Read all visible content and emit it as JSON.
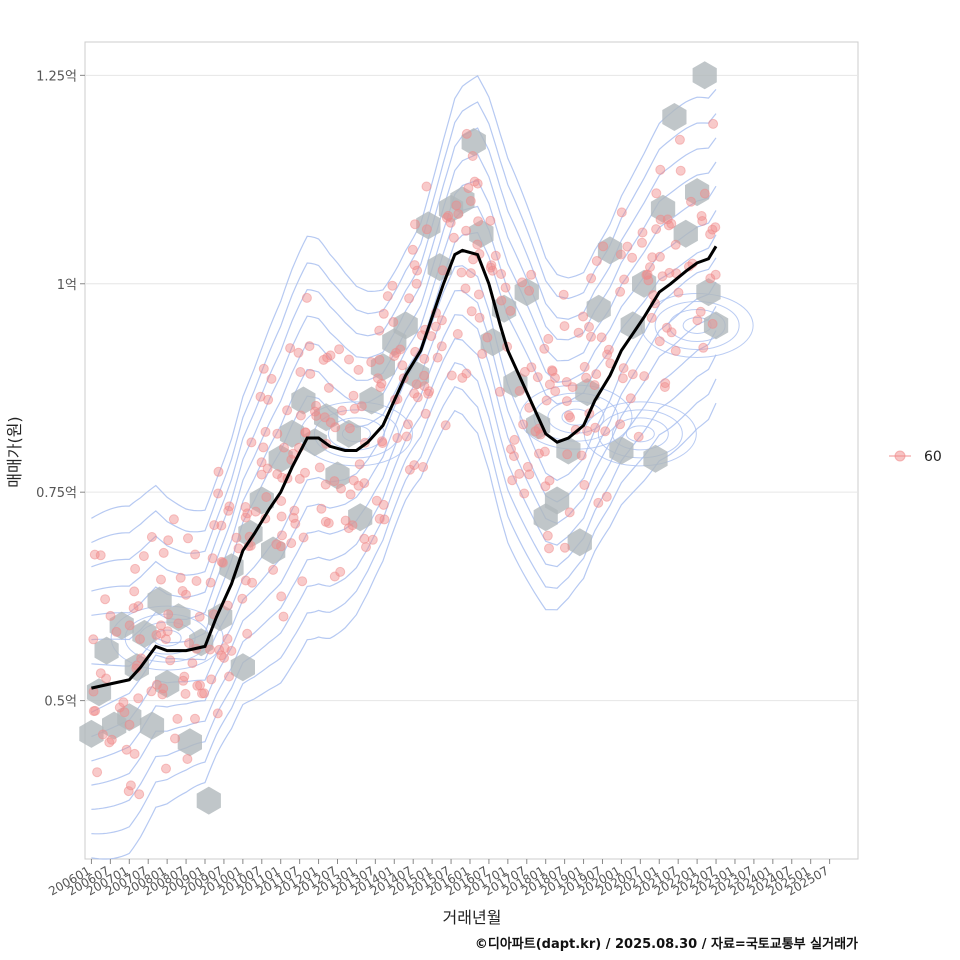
{
  "chart_data": {
    "type": "scatter",
    "xlabel": "거래년월",
    "ylabel": "매매가(원)",
    "caption": "©디아파트(dapt.kr) / 2025.08.30 / 자료=국토교통부 실거래가",
    "legend": {
      "position": "right",
      "entries": [
        {
          "name": "60",
          "color": "#f08a8a"
        }
      ]
    },
    "grid": true,
    "xlim": [
      2005.83,
      2026.25
    ],
    "ylim": [
      0.31,
      1.29
    ],
    "y_ticks": [
      {
        "value": 0.5,
        "label": "0.5억"
      },
      {
        "value": 0.75,
        "label": "0.75억"
      },
      {
        "value": 1.0,
        "label": "1억"
      },
      {
        "value": 1.25,
        "label": "1.25억"
      }
    ],
    "x_ticks": [
      "200601",
      "200607",
      "200701",
      "200707",
      "200801",
      "200807",
      "200901",
      "200907",
      "201001",
      "201007",
      "201101",
      "201107",
      "201201",
      "201207",
      "201301",
      "201307",
      "201401",
      "201407",
      "201501",
      "201507",
      "201601",
      "201607",
      "201701",
      "201707",
      "201801",
      "201807",
      "201901",
      "201907",
      "202001",
      "202007",
      "202101",
      "202107",
      "202201",
      "202207",
      "202301",
      "202307",
      "202401",
      "202407",
      "202501",
      "202507"
    ],
    "trend_line": {
      "color": "#000000",
      "points": [
        [
          2006.0,
          0.515
        ],
        [
          2006.5,
          0.52
        ],
        [
          2007.0,
          0.525
        ],
        [
          2007.3,
          0.54
        ],
        [
          2007.7,
          0.565
        ],
        [
          2008.0,
          0.56
        ],
        [
          2008.5,
          0.56
        ],
        [
          2009.0,
          0.565
        ],
        [
          2009.3,
          0.6
        ],
        [
          2009.7,
          0.64
        ],
        [
          2010.0,
          0.68
        ],
        [
          2010.3,
          0.7
        ],
        [
          2010.7,
          0.73
        ],
        [
          2011.0,
          0.75
        ],
        [
          2011.3,
          0.78
        ],
        [
          2011.7,
          0.815
        ],
        [
          2012.0,
          0.815
        ],
        [
          2012.3,
          0.805
        ],
        [
          2012.7,
          0.8
        ],
        [
          2013.0,
          0.8
        ],
        [
          2013.3,
          0.81
        ],
        [
          2013.7,
          0.83
        ],
        [
          2014.0,
          0.86
        ],
        [
          2014.3,
          0.89
        ],
        [
          2014.7,
          0.92
        ],
        [
          2015.0,
          0.96
        ],
        [
          2015.3,
          1.0
        ],
        [
          2015.6,
          1.035
        ],
        [
          2015.8,
          1.04
        ],
        [
          2016.2,
          1.035
        ],
        [
          2016.5,
          1.0
        ],
        [
          2016.8,
          0.95
        ],
        [
          2017.0,
          0.92
        ],
        [
          2017.3,
          0.89
        ],
        [
          2017.7,
          0.85
        ],
        [
          2018.0,
          0.82
        ],
        [
          2018.3,
          0.81
        ],
        [
          2018.6,
          0.815
        ],
        [
          2019.0,
          0.83
        ],
        [
          2019.3,
          0.86
        ],
        [
          2019.7,
          0.89
        ],
        [
          2020.0,
          0.92
        ],
        [
          2020.3,
          0.94
        ],
        [
          2020.6,
          0.96
        ],
        [
          2021.0,
          0.99
        ],
        [
          2021.3,
          1.0
        ],
        [
          2021.7,
          1.015
        ],
        [
          2022.0,
          1.025
        ],
        [
          2022.3,
          1.03
        ],
        [
          2022.5,
          1.045
        ]
      ]
    },
    "hexbins": [
      [
        2006.0,
        0.46
      ],
      [
        2006.2,
        0.51
      ],
      [
        2006.4,
        0.56
      ],
      [
        2006.6,
        0.47
      ],
      [
        2006.8,
        0.59
      ],
      [
        2007.0,
        0.48
      ],
      [
        2007.2,
        0.54
      ],
      [
        2007.4,
        0.58
      ],
      [
        2007.6,
        0.47
      ],
      [
        2007.8,
        0.62
      ],
      [
        2008.0,
        0.52
      ],
      [
        2008.3,
        0.6
      ],
      [
        2008.6,
        0.45
      ],
      [
        2008.9,
        0.57
      ],
      [
        2009.1,
        0.38
      ],
      [
        2009.4,
        0.6
      ],
      [
        2009.7,
        0.66
      ],
      [
        2010.0,
        0.54
      ],
      [
        2010.2,
        0.7
      ],
      [
        2010.5,
        0.74
      ],
      [
        2010.8,
        0.68
      ],
      [
        2011.0,
        0.79
      ],
      [
        2011.3,
        0.82
      ],
      [
        2011.6,
        0.86
      ],
      [
        2011.9,
        0.81
      ],
      [
        2012.2,
        0.84
      ],
      [
        2012.5,
        0.77
      ],
      [
        2012.8,
        0.82
      ],
      [
        2013.1,
        0.72
      ],
      [
        2013.4,
        0.86
      ],
      [
        2013.7,
        0.9
      ],
      [
        2014.0,
        0.93
      ],
      [
        2014.3,
        0.95
      ],
      [
        2014.6,
        0.89
      ],
      [
        2014.9,
        1.07
      ],
      [
        2015.2,
        1.02
      ],
      [
        2015.5,
        1.09
      ],
      [
        2015.8,
        1.1
      ],
      [
        2016.1,
        1.17
      ],
      [
        2016.3,
        1.06
      ],
      [
        2016.6,
        0.93
      ],
      [
        2016.9,
        0.97
      ],
      [
        2017.2,
        0.88
      ],
      [
        2017.5,
        0.99
      ],
      [
        2017.8,
        0.83
      ],
      [
        2018.0,
        0.72
      ],
      [
        2018.3,
        0.74
      ],
      [
        2018.6,
        0.8
      ],
      [
        2018.9,
        0.69
      ],
      [
        2019.1,
        0.87
      ],
      [
        2019.4,
        0.97
      ],
      [
        2019.7,
        1.04
      ],
      [
        2020.0,
        0.8
      ],
      [
        2020.3,
        0.95
      ],
      [
        2020.6,
        1.0
      ],
      [
        2020.9,
        0.79
      ],
      [
        2021.1,
        1.09
      ],
      [
        2021.4,
        1.2
      ],
      [
        2021.7,
        1.06
      ],
      [
        2022.0,
        1.11
      ],
      [
        2022.3,
        0.99
      ],
      [
        2022.5,
        0.95
      ],
      [
        2022.2,
        1.25
      ]
    ],
    "points_seed": 60,
    "contour_color": "#a9bff0",
    "hex_color": "#b0b8bc",
    "point_color": "#f08a8a"
  }
}
